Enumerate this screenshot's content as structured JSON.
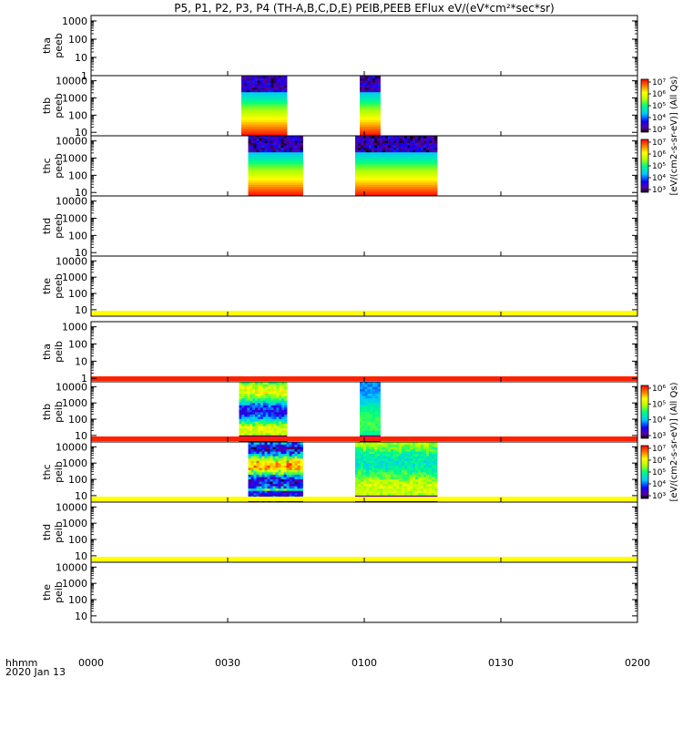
{
  "chart_data": {
    "type": "heatmap",
    "title": "P5, P1, P2, P3, P4 (TH-A,B,C,D,E) PEIB,PEEB EFlux eV/(eV*cm²*sec*sr)",
    "x_axis": {
      "corner_label_1": "hhmm",
      "corner_label_2": "2020 Jan 13",
      "tick_labels": [
        "0000",
        "0030",
        "0100",
        "0130",
        "0200"
      ],
      "range_minutes": [
        0,
        120
      ]
    },
    "colorbar_groups": [
      {
        "label": "[eV/(cm2-s-sr-eV)] (All Qs)",
        "bars": [
          {
            "panel": "thb_peeb",
            "ticks": [
              "10⁷",
              "10⁶",
              "10⁵",
              "10⁴",
              "10³"
            ]
          },
          {
            "panel": "thc_peeb",
            "ticks": [
              "10⁷",
              "10⁶",
              "10⁵",
              "10⁴",
              "10³"
            ]
          }
        ]
      },
      {
        "label": "[eV/(cm2-s-sr-eV)] (All Qs)",
        "bars": [
          {
            "panel": "thb_peib",
            "ticks": [
              "10⁶",
              "10⁵",
              "10⁴",
              "10³"
            ]
          },
          {
            "panel": "thc_peib",
            "ticks": [
              "10⁷",
              "10⁶",
              "10⁵",
              "10⁴",
              "10³"
            ]
          }
        ]
      }
    ],
    "panels": [
      {
        "id": "tha_peeb",
        "label_1": "tha",
        "label_2": "peeb",
        "y_ticks": [
          "1000",
          "100",
          "10",
          "1"
        ],
        "ylog": [
          0,
          3.3
        ],
        "blocks": [],
        "bands": []
      },
      {
        "id": "thb_peeb",
        "label_1": "thb",
        "label_2": "peeb",
        "y_ticks": [
          "10000",
          "1000",
          "100",
          "10"
        ],
        "ylog": [
          0.8,
          4.3
        ],
        "blocks": [
          {
            "start_min": 33,
            "end_min": 43,
            "profile": "peeb"
          },
          {
            "start_min": 59,
            "end_min": 63.5,
            "profile": "peeb"
          }
        ],
        "bands": []
      },
      {
        "id": "thc_peeb",
        "label_1": "thc",
        "label_2": "peeb",
        "y_ticks": [
          "10000",
          "1000",
          "100",
          "10"
        ],
        "ylog": [
          0.8,
          4.3
        ],
        "blocks": [
          {
            "start_min": 34.5,
            "end_min": 46.5,
            "profile": "peeb"
          },
          {
            "start_min": 58,
            "end_min": 76,
            "profile": "peeb"
          }
        ],
        "bands": []
      },
      {
        "id": "thd_peeb",
        "label_1": "thd",
        "label_2": "peeb",
        "y_ticks": [
          "10000",
          "1000",
          "100",
          "10"
        ],
        "ylog": [
          0.8,
          4.3
        ],
        "blocks": [],
        "bands": []
      },
      {
        "id": "the_peeb",
        "label_1": "the",
        "label_2": "peeb",
        "y_ticks": [
          "10000",
          "1000",
          "100",
          "10"
        ],
        "ylog": [
          0.6,
          4.3
        ],
        "blocks": [],
        "bands": [
          {
            "color": "#ffff00",
            "pos": "bottom"
          }
        ]
      },
      {
        "id": "tha_peib",
        "label_1": "tha",
        "label_2": "peib",
        "y_ticks": [
          "1000",
          "100",
          "10",
          "1"
        ],
        "ylog": [
          -0.2,
          3.3
        ],
        "blocks": [],
        "bands": [
          {
            "color": "#ff2000",
            "pos": "bottom"
          }
        ]
      },
      {
        "id": "thb_peib",
        "label_1": "thb",
        "label_2": "peib",
        "y_ticks": [
          "10000",
          "1000",
          "100",
          "10"
        ],
        "ylog": [
          0.6,
          4.3
        ],
        "blocks": [
          {
            "start_min": 32.5,
            "end_min": 43,
            "profile": "peib_b"
          },
          {
            "start_min": 59,
            "end_min": 63.5,
            "profile": "peib_b2"
          }
        ],
        "bands": [
          {
            "color": "#ff2000",
            "pos": "bottom"
          }
        ]
      },
      {
        "id": "thc_peib",
        "label_1": "thc",
        "label_2": "peib",
        "y_ticks": [
          "10000",
          "1000",
          "100",
          "10"
        ],
        "ylog": [
          0.6,
          4.3
        ],
        "blocks": [
          {
            "start_min": 34.5,
            "end_min": 46.5,
            "profile": "peib_c"
          },
          {
            "start_min": 58,
            "end_min": 76,
            "profile": "peib_c2"
          }
        ],
        "bands": [
          {
            "color": "#ffff00",
            "pos": "bottom"
          }
        ]
      },
      {
        "id": "thd_peib",
        "label_1": "thd",
        "label_2": "peib",
        "y_ticks": [
          "10000",
          "1000",
          "100",
          "10"
        ],
        "ylog": [
          0.6,
          4.3
        ],
        "blocks": [],
        "bands": [
          {
            "color": "#ffff00",
            "pos": "bottom"
          }
        ]
      },
      {
        "id": "the_peib",
        "label_1": "the",
        "label_2": "peib",
        "y_ticks": [
          "10000",
          "1000",
          "100",
          "10"
        ],
        "ylog": [
          0.6,
          4.3
        ],
        "blocks": [],
        "bands": []
      }
    ]
  }
}
